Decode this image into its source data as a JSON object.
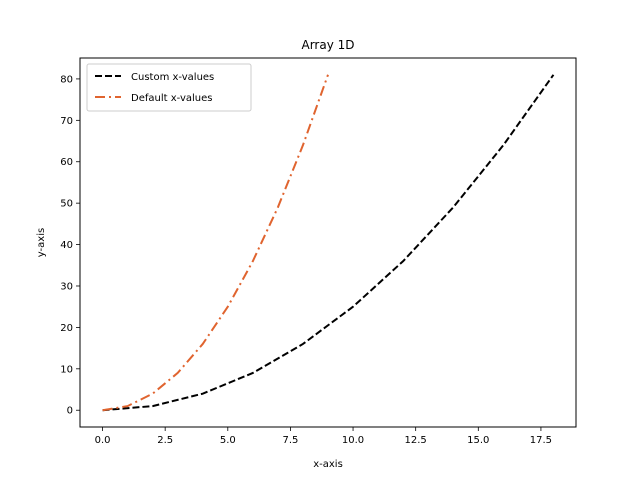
{
  "chart_data": {
    "type": "line",
    "title": "Array 1D",
    "xlabel": "x-axis",
    "ylabel": "y-axis",
    "xlim": [
      -0.9,
      18.9
    ],
    "ylim": [
      -4.05,
      85.05
    ],
    "xticks": [
      0.0,
      2.5,
      5.0,
      7.5,
      10.0,
      12.5,
      15.0,
      17.5
    ],
    "xtick_labels": [
      "0.0",
      "2.5",
      "5.0",
      "7.5",
      "10.0",
      "12.5",
      "15.0",
      "17.5"
    ],
    "yticks": [
      0,
      10,
      20,
      30,
      40,
      50,
      60,
      70,
      80
    ],
    "ytick_labels": [
      "0",
      "10",
      "20",
      "30",
      "40",
      "50",
      "60",
      "70",
      "80"
    ],
    "grid": false,
    "legend_position": "upper-left",
    "series": [
      {
        "name": "Custom x-values",
        "color": "#000000",
        "linestyle": "dashed",
        "x": [
          0,
          2,
          4,
          6,
          8,
          10,
          12,
          14,
          16,
          18
        ],
        "y": [
          0,
          1,
          4,
          9,
          16,
          25,
          36,
          49,
          64,
          81
        ]
      },
      {
        "name": "Default x-values",
        "color": "#e0642f",
        "linestyle": "dashdot",
        "x": [
          0,
          1,
          2,
          3,
          4,
          5,
          6,
          7,
          8,
          9
        ],
        "y": [
          0,
          1,
          4,
          9,
          16,
          25,
          36,
          49,
          64,
          81
        ]
      }
    ]
  }
}
